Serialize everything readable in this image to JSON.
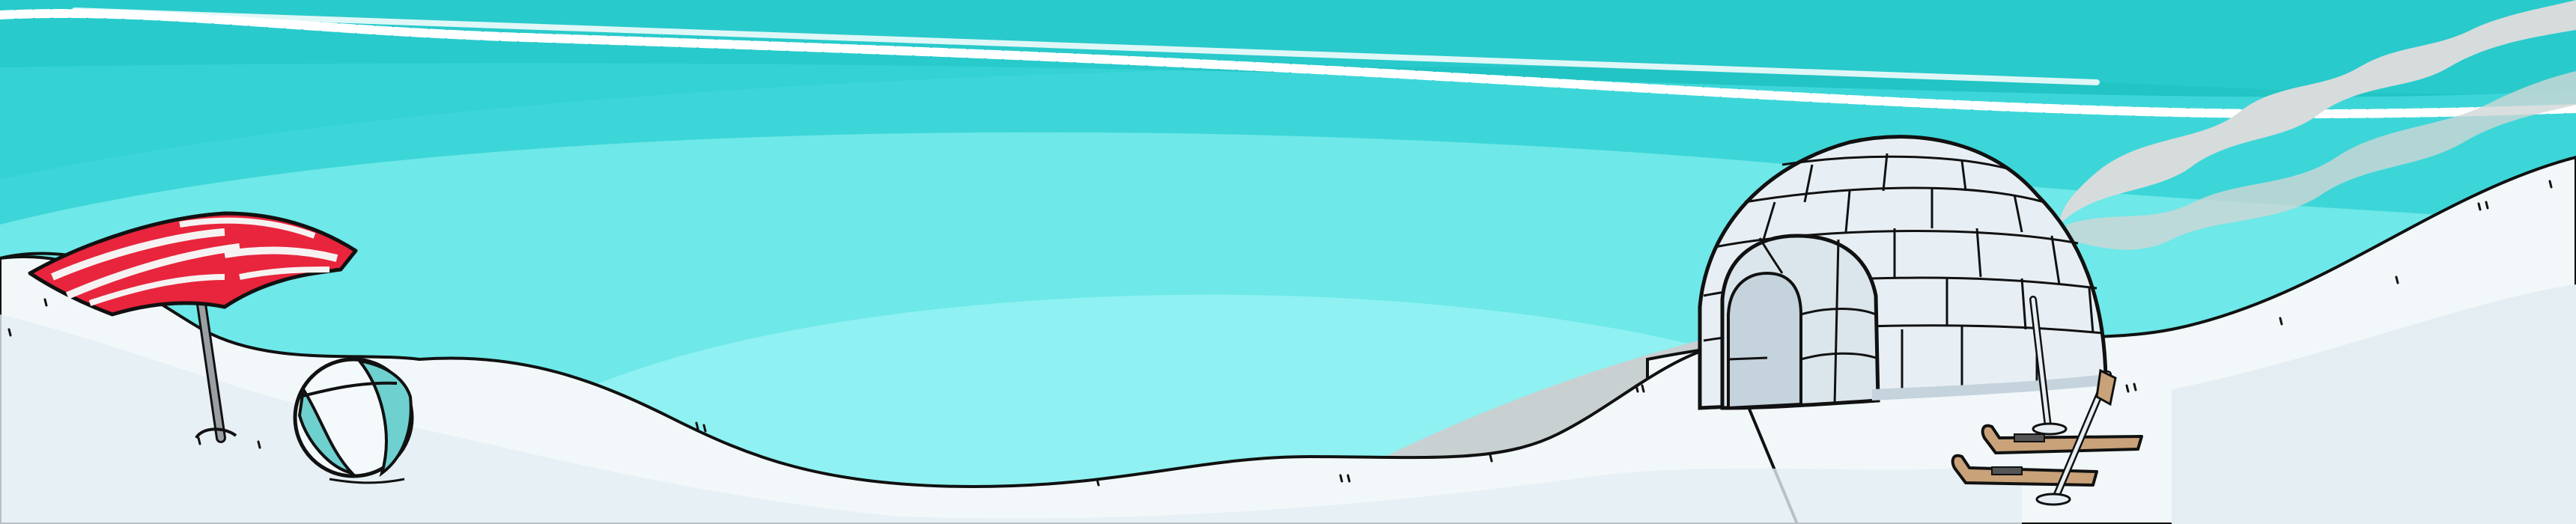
{
  "scene": {
    "description_label": "",
    "colors": {
      "sky_top": "#22c4c4",
      "sky_mid": "#3dd6d8",
      "sky_band_light": "#6ee8e8",
      "sky_band_lighter": "#8ff1f1",
      "snow": "#f2f8fa",
      "snow_shadow": "#e4eef2",
      "cloud_stripe": "#ffffff",
      "smoke": "#d6dcdc",
      "umbrella_red": "#e8253c",
      "umbrella_white": "#f7f2f2",
      "ball_teal": "#6fd0d0",
      "igloo_block": "#e8eff4",
      "igloo_shadow": "#c4d3dc",
      "ski_wood": "#c9a27a",
      "outline": "#111111"
    },
    "objects": [
      {
        "name": "beach-umbrella",
        "icon": "umbrella-icon"
      },
      {
        "name": "beach-ball",
        "icon": "ball-icon"
      },
      {
        "name": "igloo",
        "icon": "igloo-icon"
      },
      {
        "name": "chimney-smoke",
        "icon": "smoke-icon"
      },
      {
        "name": "skis",
        "icon": "ski-icon"
      },
      {
        "name": "ski-poles",
        "icon": "ski-pole-icon"
      }
    ]
  }
}
